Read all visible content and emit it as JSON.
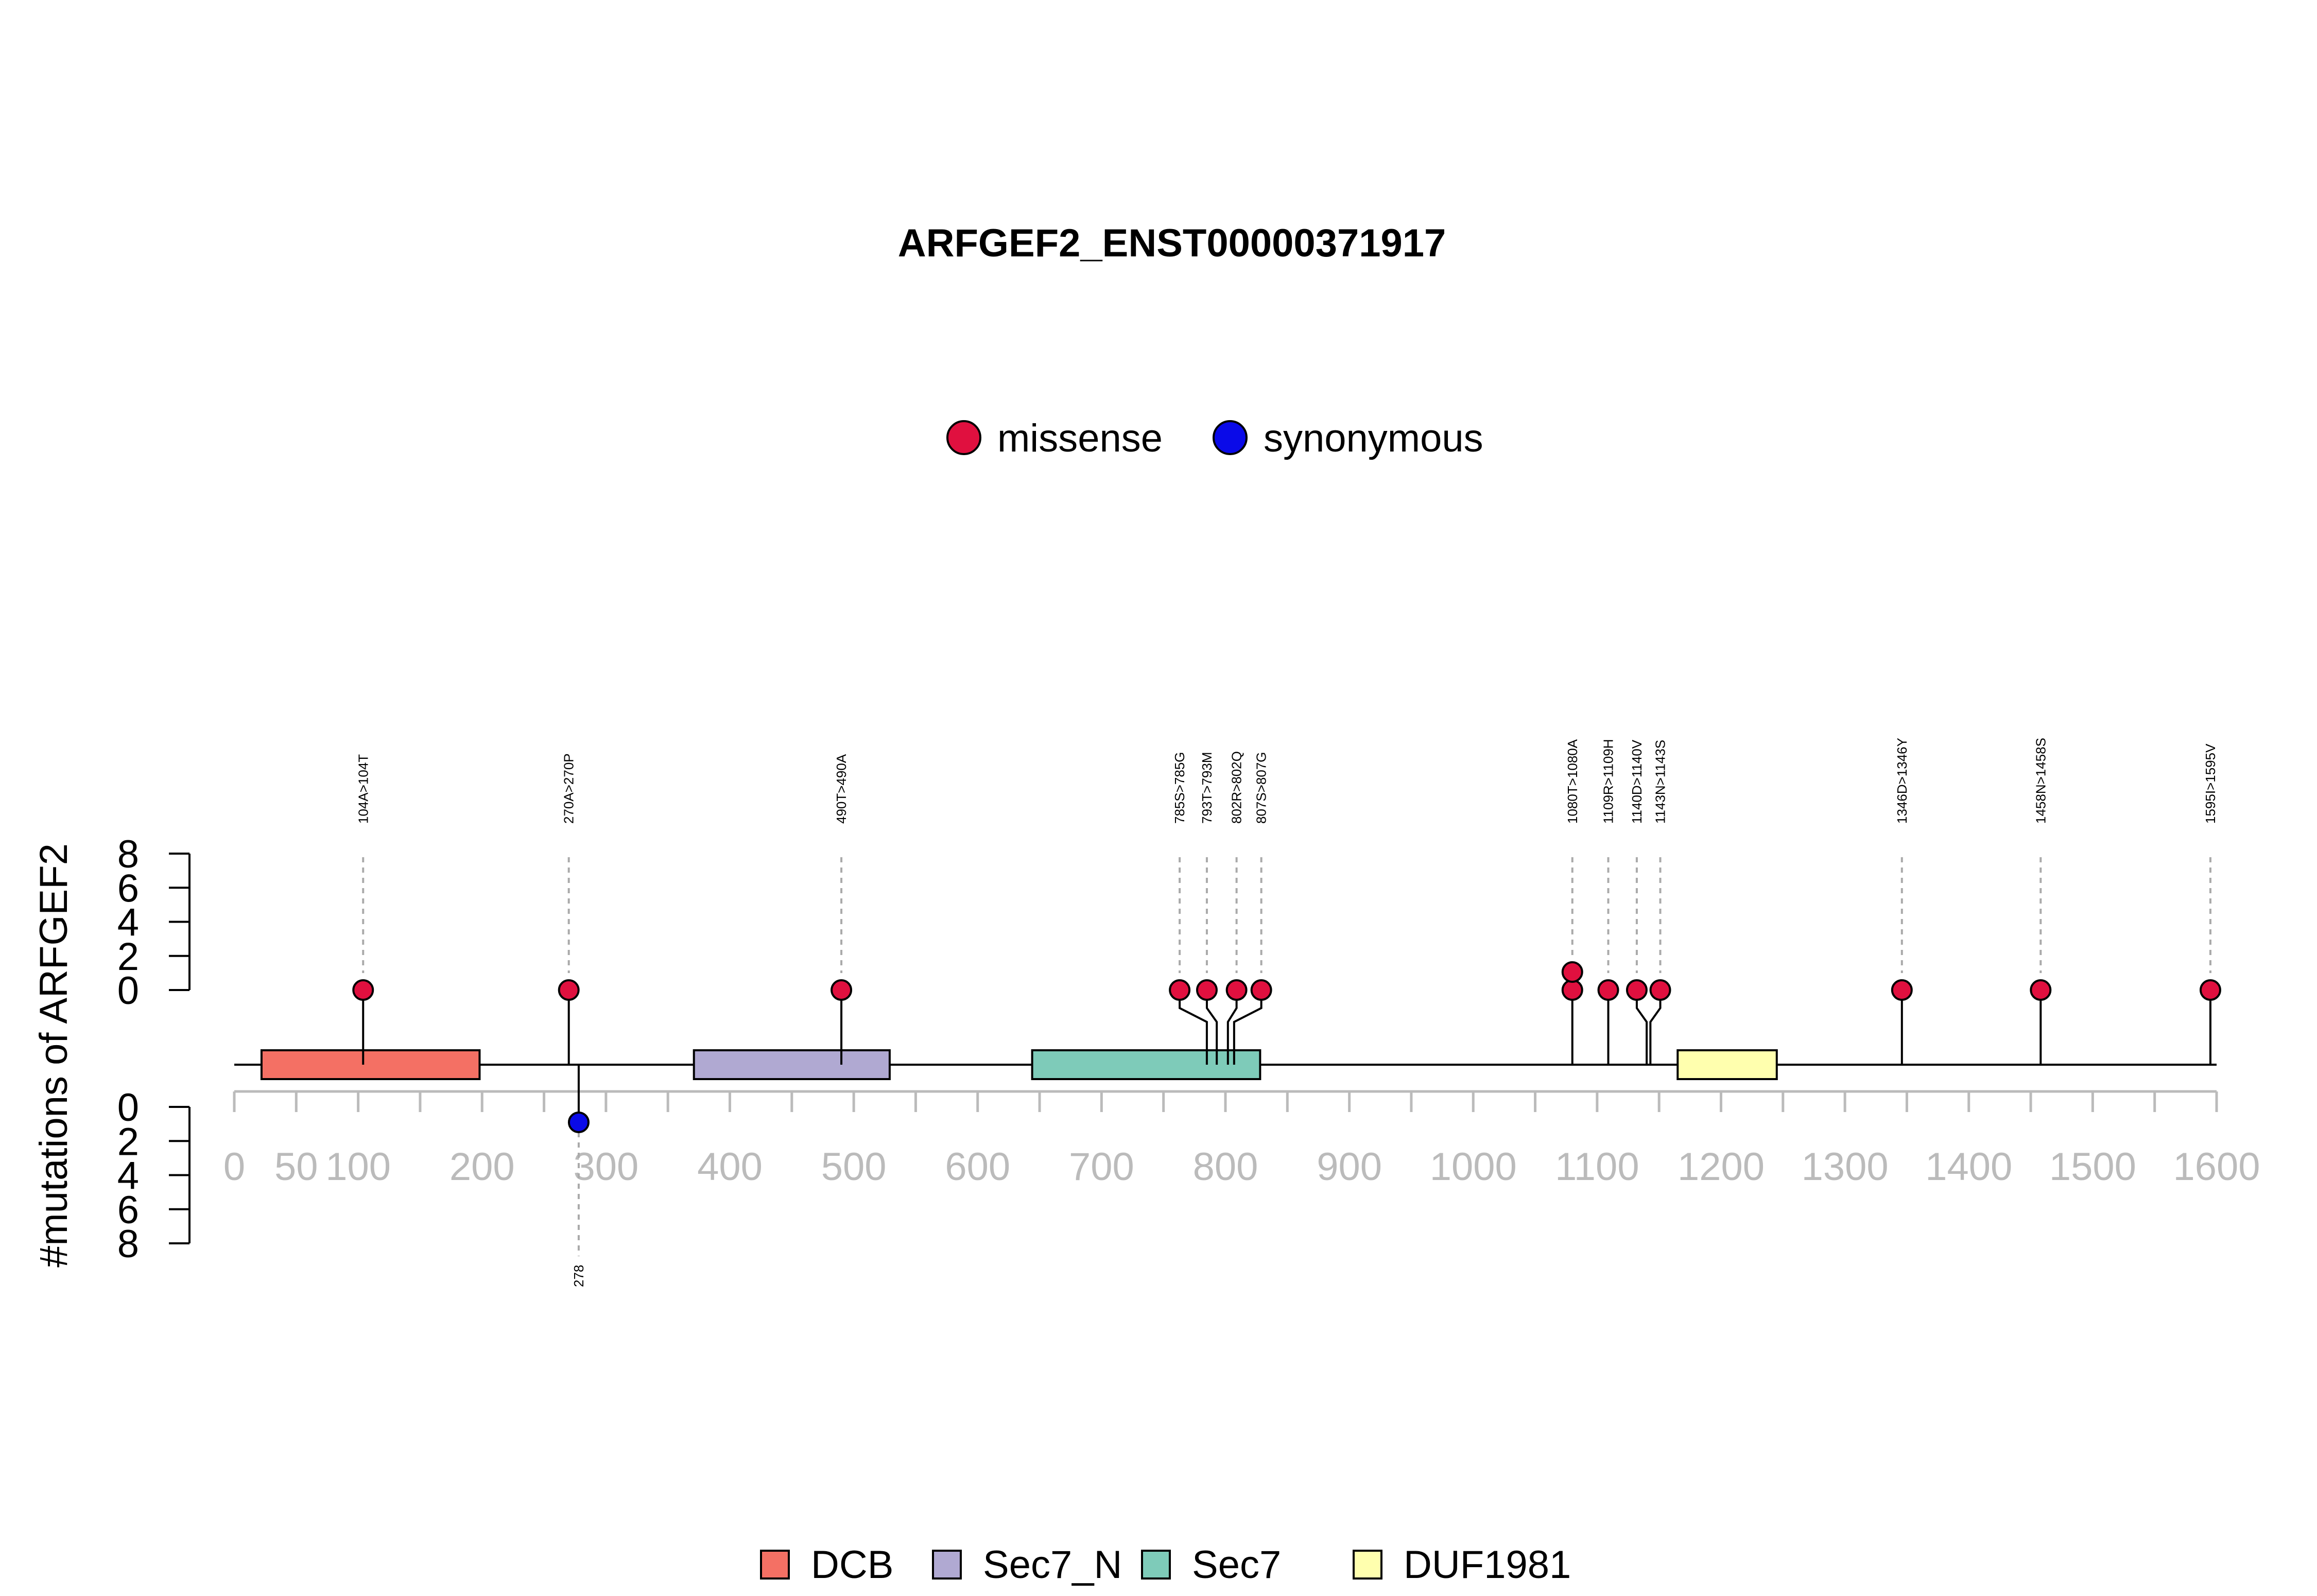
{
  "chart_data": {
    "type": "lollipop",
    "title": "ARFGEF2_ENST00000371917",
    "ylabel": "#mutations of ARFGEF2",
    "protein_length": 1600,
    "xlim": [
      0,
      1600
    ],
    "x_ticks": [
      0,
      50,
      100,
      200,
      300,
      400,
      500,
      600,
      700,
      800,
      900,
      1000,
      1100,
      1200,
      1300,
      1400,
      1500,
      1600
    ],
    "x_tick_labels": [
      "0",
      "50",
      "100",
      "200",
      "300",
      "400",
      "500",
      "600",
      "700",
      "800",
      "900",
      "1000",
      "1100",
      "1200",
      "1300",
      "1400",
      "1500",
      "1600"
    ],
    "y_ticks_top": [
      "0",
      "2",
      "4",
      "6",
      "8"
    ],
    "y_ticks_bottom": [
      "0",
      "2",
      "4",
      "6",
      "8"
    ],
    "ylim": [
      0,
      8
    ],
    "mutation_legend": [
      {
        "label": "missense",
        "color": "#E0103F"
      },
      {
        "label": "synonymous",
        "color": "#0A0AE8"
      }
    ],
    "domain_legend": [
      {
        "label": "DCB",
        "color": "#F47064"
      },
      {
        "label": "Sec7_N",
        "color": "#B0A9D2"
      },
      {
        "label": "Sec7",
        "color": "#7ECBB9"
      },
      {
        "label": "DUF1981",
        "color": "#FFFFAE"
      }
    ],
    "domains": [
      {
        "name": "DCB",
        "start": 22,
        "end": 198,
        "color": "#F47064"
      },
      {
        "name": "Sec7_N",
        "start": 371,
        "end": 529,
        "color": "#B0A9D2"
      },
      {
        "name": "Sec7",
        "start": 644,
        "end": 828,
        "color": "#7ECBB9"
      },
      {
        "name": "DUF1981",
        "start": 1165,
        "end": 1245,
        "color": "#FFFFAE"
      }
    ],
    "mutations_top": [
      {
        "label": "104A>104T",
        "pos": 104,
        "count": 1,
        "type": "missense",
        "offset": 0
      },
      {
        "label": "270A>270P",
        "pos": 270,
        "count": 1,
        "type": "missense",
        "offset": 0
      },
      {
        "label": "490T>490A",
        "pos": 490,
        "count": 1,
        "type": "missense",
        "offset": 0
      },
      {
        "label": "785S>785G",
        "pos": 785,
        "count": 1,
        "type": "missense",
        "offset": -22
      },
      {
        "label": "793T>793M",
        "pos": 793,
        "count": 1,
        "type": "missense",
        "offset": -8
      },
      {
        "label": "802R>802Q",
        "pos": 802,
        "count": 1,
        "type": "missense",
        "offset": 7
      },
      {
        "label": "807S>807G",
        "pos": 807,
        "count": 1,
        "type": "missense",
        "offset": 22
      },
      {
        "label": "1080T>1080A",
        "pos": 1080,
        "count": 2,
        "type": "missense",
        "offset": 0
      },
      {
        "label": "1109R>1109H",
        "pos": 1109,
        "count": 1,
        "type": "missense",
        "offset": 0
      },
      {
        "label": "1140D>1140V",
        "pos": 1140,
        "count": 1,
        "type": "missense",
        "offset": -8
      },
      {
        "label": "1143N>1143S",
        "pos": 1143,
        "count": 1,
        "type": "missense",
        "offset": 8
      },
      {
        "label": "1346D>1346Y",
        "pos": 1346,
        "count": 1,
        "type": "missense",
        "offset": 0
      },
      {
        "label": "1458N>1458S",
        "pos": 1458,
        "count": 1,
        "type": "missense",
        "offset": 0
      },
      {
        "label": "1595I>1595V",
        "pos": 1595,
        "count": 1,
        "type": "missense",
        "offset": 0
      }
    ],
    "mutations_bottom": [
      {
        "label": "278",
        "pos": 278,
        "count": 1,
        "type": "synonymous",
        "offset": 0
      }
    ]
  }
}
